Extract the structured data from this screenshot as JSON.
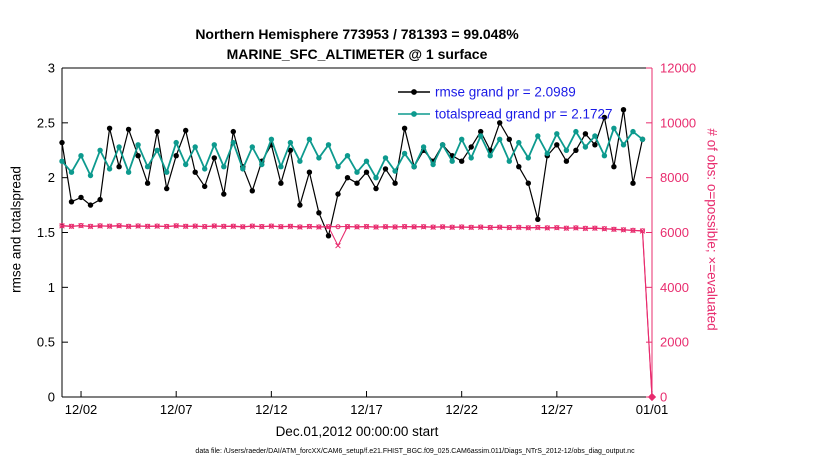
{
  "title_line1": "Northern Hemisphere 773953 / 781393 = 99.048%",
  "title_line2": "MARINE_SFC_ALTIMETER @ 1 surface",
  "xlabel": "Dec.01,2012 00:00:00 start",
  "ylabel_left": "rmse and totalspread",
  "ylabel_right": "# of obs: o=possible; ×=evaluated",
  "footer": "data file: /Users/raeder/DAI/ATM_forcXX/CAM6_setup/f.e21.FHIST_BGC.f09_025.CAM6assim.011/Diags_NTrS_2012-12/obs_diag_output.nc",
  "colors": {
    "rmse": "#000000",
    "totalspread": "#0d9a8e",
    "obs": "#e82c6e",
    "legend_text": "#1a1ae6",
    "axis": "#000000"
  },
  "legend": [
    {
      "label": "rmse grand pr = 2.0989",
      "series": "rmse"
    },
    {
      "label": "totalspread grand pr = 2.1727",
      "series": "totalspread"
    }
  ],
  "chart_data": {
    "type": "line",
    "title": "Northern Hemisphere 773953 / 781393 = 99.048% | MARINE_SFC_ALTIMETER @ 1 surface",
    "xlabel": "Dec.01,2012 00:00:00 start",
    "ylabel_left": "rmse and totalspread",
    "ylabel_right": "# of obs: o=possible; ×=evaluated",
    "x_range": [
      1,
      32
    ],
    "ylim_left": [
      0,
      3
    ],
    "ylim_right": [
      0,
      12000
    ],
    "grid": false,
    "legend_position": "top-center-inside",
    "x_ticks": [
      {
        "label": "12/02",
        "day": 2
      },
      {
        "label": "12/07",
        "day": 7
      },
      {
        "label": "12/12",
        "day": 12
      },
      {
        "label": "12/17",
        "day": 17
      },
      {
        "label": "12/22",
        "day": 22
      },
      {
        "label": "12/27",
        "day": 27
      },
      {
        "label": "01/01",
        "day": 32
      }
    ],
    "y_ticks_left": [
      0,
      0.5,
      1,
      1.5,
      2,
      2.5,
      3
    ],
    "y_ticks_right": [
      0,
      2000,
      4000,
      6000,
      8000,
      10000,
      12000
    ],
    "series": [
      {
        "name": "rmse",
        "axis": "left",
        "marker": "dot",
        "color": "#000000",
        "grand_mean": 2.0989,
        "x_start": 1.0,
        "x_step": 0.5,
        "values": [
          2.32,
          1.78,
          1.82,
          1.75,
          1.8,
          2.45,
          2.1,
          2.44,
          2.2,
          1.95,
          2.42,
          1.9,
          2.2,
          2.43,
          2.05,
          1.92,
          2.18,
          1.85,
          2.42,
          2.1,
          1.88,
          2.15,
          2.3,
          1.95,
          2.25,
          1.75,
          2.05,
          1.68,
          1.47,
          1.85,
          2.0,
          1.95,
          2.05,
          1.9,
          2.08,
          1.95,
          2.45,
          2.1,
          2.25,
          2.15,
          2.3,
          2.2,
          2.15,
          2.28,
          2.42,
          2.25,
          2.5,
          2.35,
          2.1,
          1.95,
          1.62,
          2.2,
          2.3,
          2.15,
          2.25,
          2.4,
          2.3,
          2.55,
          2.1,
          2.62,
          1.95,
          2.35
        ]
      },
      {
        "name": "totalspread",
        "axis": "left",
        "marker": "dot",
        "color": "#0d9a8e",
        "grand_mean": 2.1727,
        "x_start": 1.0,
        "x_step": 0.5,
        "values": [
          2.15,
          2.05,
          2.2,
          2.02,
          2.25,
          2.08,
          2.28,
          2.05,
          2.3,
          2.1,
          2.25,
          2.05,
          2.32,
          2.12,
          2.28,
          2.08,
          2.3,
          2.1,
          2.32,
          2.08,
          2.28,
          2.12,
          2.35,
          2.1,
          2.32,
          2.15,
          2.35,
          2.18,
          2.3,
          2.1,
          2.2,
          2.05,
          2.15,
          2.0,
          2.18,
          2.06,
          2.22,
          2.1,
          2.28,
          2.12,
          2.3,
          2.15,
          2.35,
          2.18,
          2.38,
          2.2,
          2.35,
          2.15,
          2.32,
          2.18,
          2.38,
          2.22,
          2.4,
          2.25,
          2.42,
          2.28,
          2.38,
          2.2,
          2.45,
          2.3,
          2.42,
          2.35
        ]
      },
      {
        "name": "possible_obs",
        "axis": "right",
        "marker": "circle",
        "color": "#e82c6e",
        "x_start": 1.0,
        "x_step": 0.5,
        "values": [
          6250,
          6230,
          6255,
          6225,
          6245,
          6235,
          6250,
          6228,
          6242,
          6230,
          6238,
          6222,
          6248,
          6230,
          6236,
          6218,
          6240,
          6226,
          6232,
          6212,
          6236,
          6220,
          6238,
          6216,
          6230,
          6204,
          6222,
          6206,
          6215,
          6210,
          6218,
          6208,
          6220,
          6202,
          6214,
          6206,
          6218,
          6210,
          6214,
          6200,
          6210,
          6196,
          6206,
          6192,
          6200,
          6186,
          6196,
          6182,
          6190,
          6176,
          6186,
          6172,
          6180,
          6162,
          6172,
          6152,
          6162,
          6142,
          6122,
          6102,
          6082,
          6062,
          0
        ]
      },
      {
        "name": "evaluated_obs",
        "axis": "right",
        "marker": "x",
        "color": "#e82c6e",
        "x_start": 1.0,
        "x_step": 0.5,
        "values": [
          6242,
          6222,
          6247,
          6217,
          6237,
          6227,
          6242,
          6220,
          6234,
          6222,
          6230,
          6214,
          6240,
          6222,
          6228,
          6210,
          6232,
          6218,
          6224,
          6204,
          6228,
          6212,
          6230,
          6208,
          6222,
          6196,
          6214,
          6198,
          6207,
          5520,
          6210,
          6200,
          6212,
          6194,
          6206,
          6198,
          6210,
          6202,
          6206,
          6192,
          6202,
          6188,
          6198,
          6184,
          6192,
          6178,
          6188,
          6174,
          6182,
          6168,
          6178,
          6164,
          6172,
          6154,
          6164,
          6144,
          6154,
          6134,
          6114,
          6094,
          6074,
          6054,
          0
        ]
      }
    ]
  }
}
